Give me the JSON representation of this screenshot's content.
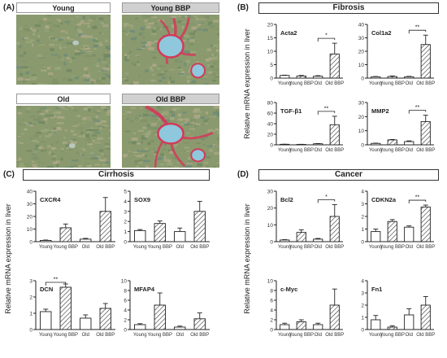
{
  "panels": {
    "A": {
      "letter": "(A)",
      "images": [
        {
          "label": "Young",
          "style": "white",
          "treated": false
        },
        {
          "label": "Young BBP",
          "style": "grey",
          "treated": true
        },
        {
          "label": "Old",
          "style": "white",
          "treated": false
        },
        {
          "label": "Old BBP",
          "style": "grey",
          "treated": true
        }
      ]
    },
    "B": {
      "letter": "(B)",
      "title": "Fibrosis"
    },
    "C": {
      "letter": "(C)",
      "title": "Cirrhosis"
    },
    "D": {
      "letter": "(D)",
      "title": "Cancer"
    }
  },
  "colors": {
    "axis": "#222222",
    "hatch": "#333333",
    "bar_fill": "#ffffff",
    "stain_red": "#d23a5a",
    "vessel": "#8fc7dc",
    "tissue_green": "#8a9a6e"
  },
  "chart_data": [
    {
      "type": "bar",
      "panel": "B",
      "title": "Acta2",
      "categories": [
        "Young",
        "Young BBP",
        "Old",
        "Old BBP"
      ],
      "values": [
        1.0,
        0.8,
        0.7,
        9.0
      ],
      "errors": [
        0.1,
        0.2,
        0.2,
        4.0
      ],
      "ylim": [
        0,
        20
      ],
      "yticks": [
        0,
        5,
        10,
        15,
        20
      ],
      "ylabel": "",
      "significance": [
        {
          "from": 2,
          "to": 3,
          "label": "*"
        }
      ]
    },
    {
      "type": "bar",
      "panel": "B",
      "title": "Col1a2",
      "categories": [
        "Young",
        "Young BBP",
        "Old",
        "Old BBP"
      ],
      "values": [
        1.0,
        1.2,
        1.0,
        25.0
      ],
      "errors": [
        0.2,
        0.4,
        0.3,
        7.0
      ],
      "ylim": [
        0,
        40
      ],
      "yticks": [
        0,
        10,
        20,
        30,
        40
      ],
      "ylabel": "",
      "significance": [
        {
          "from": 2,
          "to": 3,
          "label": "**"
        }
      ]
    },
    {
      "type": "bar",
      "panel": "B",
      "title": "TGF-β1",
      "categories": [
        "Young",
        "Young BBP",
        "Old",
        "Old BBP"
      ],
      "values": [
        1.0,
        0.8,
        2.0,
        38.0
      ],
      "errors": [
        0.2,
        0.2,
        0.5,
        16.0
      ],
      "ylim": [
        0,
        80
      ],
      "yticks": [
        0,
        20,
        40,
        60,
        80
      ],
      "ylabel": "",
      "significance": [
        {
          "from": 2,
          "to": 3,
          "label": "**"
        }
      ]
    },
    {
      "type": "bar",
      "panel": "B",
      "title": "MMP2",
      "categories": [
        "Young",
        "Young BBP",
        "Old",
        "Old BBP"
      ],
      "values": [
        1.0,
        3.5,
        2.3,
        16.5
      ],
      "errors": [
        0.2,
        0.3,
        0.5,
        4.5
      ],
      "ylim": [
        0,
        30
      ],
      "yticks": [
        0,
        10,
        20,
        30
      ],
      "ylabel": "",
      "significance": [
        {
          "from": 2,
          "to": 3,
          "label": "**"
        }
      ]
    },
    {
      "type": "bar",
      "panel": "C",
      "title": "CXCR4",
      "categories": [
        "Young",
        "Young BBP",
        "Old",
        "Old BBP"
      ],
      "values": [
        1.0,
        11.0,
        2.0,
        24.0
      ],
      "errors": [
        0.3,
        3.0,
        0.6,
        11.0
      ],
      "ylim": [
        0,
        40
      ],
      "yticks": [
        0,
        10,
        20,
        30,
        40
      ],
      "ylabel": "",
      "significance": []
    },
    {
      "type": "bar",
      "panel": "C",
      "title": "SOX9",
      "categories": [
        "Young",
        "Young BBP",
        "Old",
        "Old BBP"
      ],
      "values": [
        1.1,
        1.8,
        1.0,
        3.0
      ],
      "errors": [
        0.1,
        0.25,
        0.35,
        1.0
      ],
      "ylim": [
        0,
        5
      ],
      "yticks": [
        0,
        1,
        2,
        3,
        4,
        5
      ],
      "ylabel": "",
      "significance": []
    },
    {
      "type": "bar",
      "panel": "C",
      "title": "DCN",
      "categories": [
        "Young",
        "Young BBP",
        "Old",
        "Old BBP"
      ],
      "values": [
        1.1,
        2.6,
        0.7,
        1.3
      ],
      "errors": [
        0.15,
        0.2,
        0.2,
        0.3
      ],
      "ylim": [
        0,
        3
      ],
      "yticks": [
        0,
        1,
        2,
        3
      ],
      "ylabel": "",
      "significance": [
        {
          "from": 0,
          "to": 1,
          "label": "**"
        }
      ]
    },
    {
      "type": "bar",
      "panel": "C",
      "title": "MFAP4",
      "categories": [
        "Young",
        "Young BBP",
        "Old",
        "Old BBP"
      ],
      "values": [
        1.0,
        5.0,
        0.5,
        2.2
      ],
      "errors": [
        0.2,
        2.5,
        0.2,
        1.2
      ],
      "ylim": [
        0,
        10
      ],
      "yticks": [
        0,
        2,
        4,
        6,
        8,
        10
      ],
      "ylabel": "",
      "significance": []
    },
    {
      "type": "bar",
      "panel": "D",
      "title": "Bcl2",
      "categories": [
        "Young",
        "Young BBP",
        "Old",
        "Old BBP"
      ],
      "values": [
        1.0,
        5.5,
        1.5,
        15.0
      ],
      "errors": [
        0.2,
        1.5,
        0.4,
        7.0
      ],
      "ylim": [
        0,
        30
      ],
      "yticks": [
        0,
        10,
        20,
        30
      ],
      "ylabel": "",
      "significance": [
        {
          "from": 2,
          "to": 3,
          "label": "*"
        }
      ]
    },
    {
      "type": "bar",
      "panel": "D",
      "title": "CDKN2a",
      "categories": [
        "Young",
        "Young BBP",
        "Old",
        "Old BBP"
      ],
      "values": [
        0.8,
        1.6,
        1.15,
        2.75
      ],
      "errors": [
        0.2,
        0.15,
        0.1,
        0.15
      ],
      "ylim": [
        0,
        4
      ],
      "yticks": [
        0,
        1,
        2,
        3,
        4
      ],
      "ylabel": "",
      "significance": [
        {
          "from": 2,
          "to": 3,
          "label": "**"
        }
      ]
    },
    {
      "type": "bar",
      "panel": "D",
      "title": "c-Myc",
      "categories": [
        "Young",
        "Young BBP",
        "Old",
        "Old BBP"
      ],
      "values": [
        1.0,
        1.6,
        1.0,
        5.0
      ],
      "errors": [
        0.3,
        0.4,
        0.3,
        3.3
      ],
      "ylim": [
        0,
        10
      ],
      "yticks": [
        0,
        2,
        4,
        6,
        8,
        10
      ],
      "ylabel": "",
      "significance": []
    },
    {
      "type": "bar",
      "panel": "D",
      "title": "Fn1",
      "categories": [
        "Young",
        "Young BBP",
        "Old",
        "Old BBP"
      ],
      "values": [
        0.8,
        0.2,
        1.2,
        2.0
      ],
      "errors": [
        0.35,
        0.1,
        0.5,
        0.7
      ],
      "ylim": [
        0,
        4
      ],
      "yticks": [
        0,
        1,
        2,
        3,
        4
      ],
      "ylabel": "",
      "significance": []
    }
  ],
  "axis_labels": {
    "B": "Relative mRNA expression in liver",
    "C": "Relative mRNA expression in liver",
    "D": "Relative mRNA expression in liver"
  }
}
